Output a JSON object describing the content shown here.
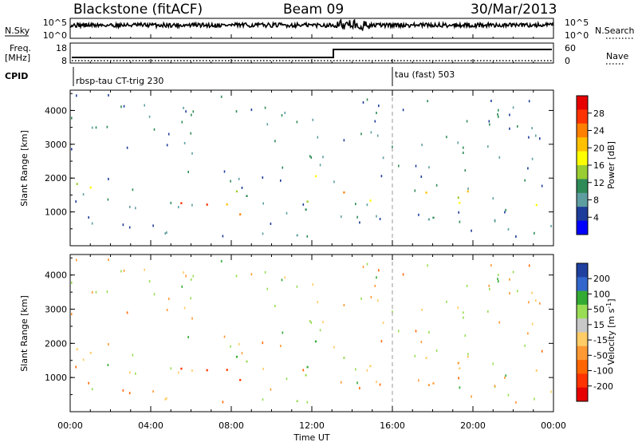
{
  "header": {
    "station": "Blackstone (fitACF)",
    "beam": "Beam 09",
    "date": "30/Mar/2013"
  },
  "top_panels": {
    "nsky_label": "N.Sky",
    "nsearch_label": "N.Search",
    "nsky_ticks": [
      "10^5",
      "10^0"
    ],
    "nsearch_ticks": [
      "10^5",
      "10^0"
    ],
    "freq_label_1": "Freq.",
    "freq_label_2": "[MHz]",
    "freq_ticks": [
      "18",
      "8"
    ],
    "nave_label": "Nave",
    "nave_ticks": [
      "60",
      "0"
    ],
    "cpid_label": "CPID",
    "cpid_segments": [
      {
        "label": "rbsp-tau CT-trig 230",
        "start_hour": 0
      },
      {
        "label": "tau (fast) 503",
        "start_hour": 16
      }
    ]
  },
  "axes": {
    "ylabel": "Slant Range [km]",
    "xlabel": "Time UT",
    "x_tick_labels": [
      "00:00",
      "04:00",
      "08:00",
      "12:00",
      "16:00",
      "20:00",
      "00:00"
    ],
    "y_tick_labels": [
      "1000",
      "2000",
      "3000",
      "4000"
    ]
  },
  "power_colorbar": {
    "label": "Power [dB]",
    "ticks": [
      "28",
      "24",
      "20",
      "16",
      "12",
      "8",
      "4"
    ],
    "colors": [
      "#e60000",
      "#ff3300",
      "#ff8000",
      "#ffc000",
      "#ffff00",
      "#9acd32",
      "#2e8b57",
      "#5f9ea0",
      "#1e3c9a",
      "#0000ff"
    ]
  },
  "velocity_colorbar": {
    "label": "Velocity [m s^-1]",
    "ticks": [
      "200",
      "100",
      "50",
      "15",
      "-15",
      "-50",
      "-100",
      "-200"
    ],
    "colors": [
      "#2040a0",
      "#3366cc",
      "#33aa33",
      "#99dd55",
      "#c8c8c8",
      "#ffcc66",
      "#ff9933",
      "#ff6600",
      "#ff3300",
      "#e60000"
    ]
  },
  "chart_data": {
    "type": "heatmap",
    "x_range_hours": [
      0,
      24
    ],
    "y_range_km": [
      0,
      4600
    ],
    "marker_hour": 16,
    "scatter_regions": [
      {
        "t0": 0.3,
        "t1": 3.5,
        "r0": 1350,
        "r1": 1900,
        "power": 18,
        "velocity": -5
      },
      {
        "t0": 1.0,
        "t1": 2.5,
        "r0": 500,
        "r1": 700,
        "power": 14,
        "velocity": -70
      },
      {
        "t0": 3.5,
        "t1": 9.5,
        "r0": 800,
        "r1": 1450,
        "power": 25,
        "velocity": -150
      },
      {
        "t0": 5.5,
        "t1": 9.5,
        "r0": 1450,
        "r1": 1850,
        "power": 10,
        "velocity": 40
      },
      {
        "t0": 8.0,
        "t1": 11.5,
        "r0": 200,
        "r1": 400,
        "power": 6,
        "velocity": 30
      },
      {
        "t0": 11.0,
        "t1": 13.0,
        "r0": 900,
        "r1": 2200,
        "power": 12,
        "velocity": 40
      },
      {
        "t0": 13.0,
        "t1": 14.3,
        "r0": 1400,
        "r1": 2100,
        "power": 20,
        "velocity": 30
      },
      {
        "t0": 13.5,
        "t1": 14.0,
        "r0": 3300,
        "r1": 3900,
        "power": 14,
        "velocity": 40
      },
      {
        "t0": 14.3,
        "t1": 24,
        "r0": 1200,
        "r1": 1800,
        "power": 18,
        "velocity": -5
      },
      {
        "t0": 16.5,
        "t1": 21.0,
        "r0": 700,
        "r1": 1000,
        "power": 10,
        "velocity": -30
      }
    ]
  }
}
